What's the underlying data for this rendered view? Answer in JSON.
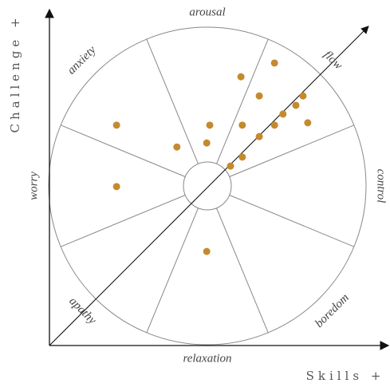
{
  "chart_data": {
    "type": "scatter",
    "x_label": "Skills +",
    "y_label": "Challenge +",
    "annotations": [
      "arousal",
      "flow",
      "control",
      "boredom",
      "relaxation",
      "apathy",
      "worry",
      "anxiety"
    ],
    "x": [
      6.64,
      5.65,
      6.19,
      7.48,
      7.27,
      6.89,
      1.98,
      4.73,
      5.69,
      6.64,
      7.62,
      3.76,
      4.64,
      6.19,
      5.69,
      5.34,
      1.98,
      4.64
    ],
    "values": [
      8.41,
      8.0,
      7.43,
      7.43,
      7.15,
      6.89,
      6.56,
      6.56,
      6.56,
      6.56,
      6.63,
      5.91,
      6.03,
      6.22,
      5.61,
      5.34,
      4.73,
      2.8
    ],
    "color": "#c58a2e",
    "xlim": [
      0,
      10
    ],
    "ylim": [
      0,
      10
    ]
  }
}
